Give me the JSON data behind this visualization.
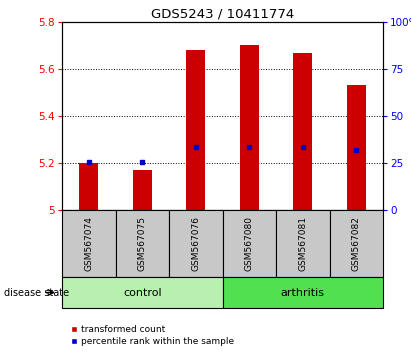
{
  "title": "GDS5243 / 10411774",
  "samples": [
    "GSM567074",
    "GSM567075",
    "GSM567076",
    "GSM567080",
    "GSM567081",
    "GSM567082"
  ],
  "bar_tops": [
    5.2,
    5.17,
    5.68,
    5.7,
    5.67,
    5.53
  ],
  "bar_base": 5.0,
  "blue_markers": [
    5.205,
    5.205,
    5.27,
    5.27,
    5.27,
    5.255
  ],
  "bar_color": "#cc0000",
  "blue_color": "#0000cc",
  "ylim_left": [
    5.0,
    5.8
  ],
  "yticks_left": [
    5.0,
    5.2,
    5.4,
    5.6,
    5.8
  ],
  "ytick_labels_left": [
    "5",
    "5.2",
    "5.4",
    "5.6",
    "5.8"
  ],
  "yticks_right": [
    0,
    25,
    50,
    75,
    100
  ],
  "ytick_labels_right": [
    "0",
    "25",
    "50",
    "75",
    "100%"
  ],
  "group_box_color": "#c8c8c8",
  "control_color": "#b8f0b0",
  "arthritis_color": "#50e050",
  "legend_items": [
    {
      "label": "transformed count",
      "color": "#cc0000"
    },
    {
      "label": "percentile rank within the sample",
      "color": "#0000cc"
    }
  ],
  "disease_state_label": "disease state",
  "bar_width": 0.35,
  "background_color": "#ffffff"
}
